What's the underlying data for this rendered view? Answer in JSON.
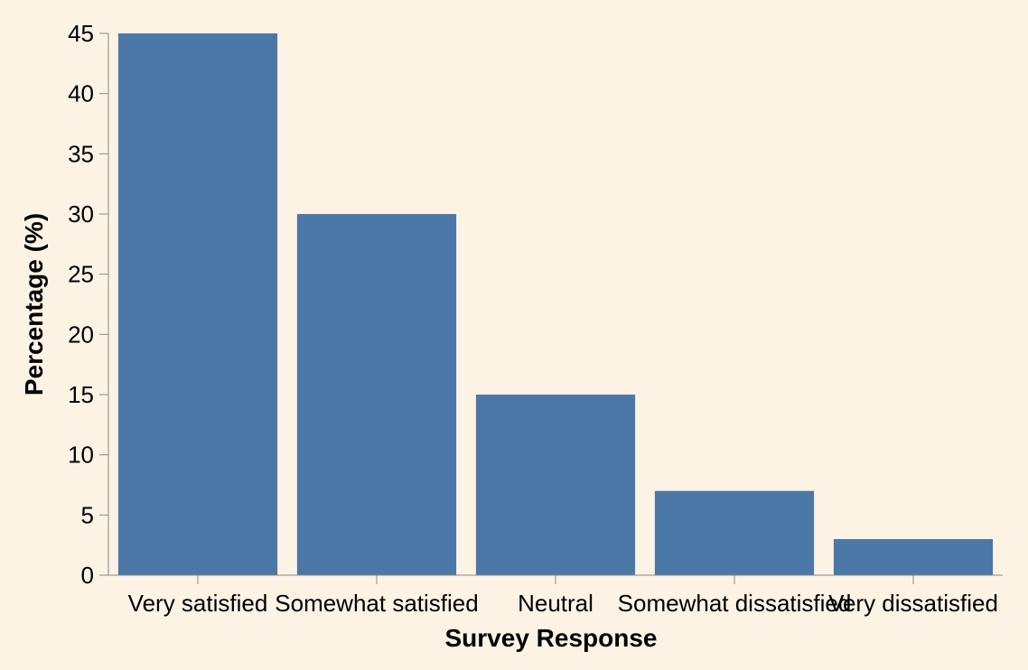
{
  "chart_data": {
    "type": "bar",
    "categories": [
      "Very satisfied",
      "Somewhat satisfied",
      "Neutral",
      "Somewhat dissatisfied",
      "Very dissatisfied"
    ],
    "values": [
      45,
      30,
      15,
      7,
      3
    ],
    "xlabel": "Survey Response",
    "ylabel": "Percentage (%)",
    "ylim": [
      0,
      45
    ],
    "yticks": [
      0,
      5,
      10,
      15,
      20,
      25,
      30,
      35,
      40,
      45
    ],
    "grid": false,
    "legend": "none"
  },
  "colors": {
    "bar": "#4c78a8",
    "background": "#fdf3e5",
    "axis": "#888888"
  }
}
